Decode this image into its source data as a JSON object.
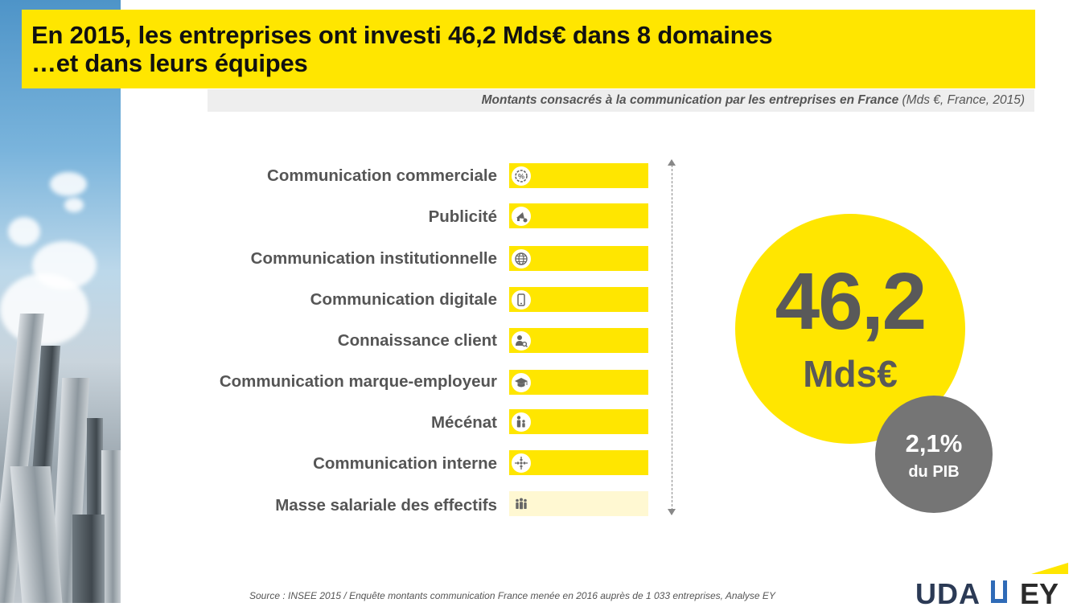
{
  "title": {
    "line1": "En 2015, les entreprises ont investi 46,2 Mds€ dans 8 domaines",
    "line2": "…et dans leurs équipes"
  },
  "subtitle": {
    "bold": "Montants consacrés à la communication par les entreprises en France",
    "normal": " (Mds €, France, 2015)"
  },
  "rows": [
    {
      "label": "Communication commerciale",
      "icon": "percent-gear-icon",
      "bar": "full"
    },
    {
      "label": "Publicité",
      "icon": "megaphone-icon",
      "bar": "full"
    },
    {
      "label": "Communication institutionnelle",
      "icon": "globe-icon",
      "bar": "full"
    },
    {
      "label": "Communication digitale",
      "icon": "smartphone-icon",
      "bar": "full"
    },
    {
      "label": "Connaissance client",
      "icon": "user-search-icon",
      "bar": "full"
    },
    {
      "label": "Communication marque-employeur",
      "icon": "graduation-cap-icon",
      "bar": "full"
    },
    {
      "label": "Mécénat",
      "icon": "parent-child-icon",
      "bar": "full"
    },
    {
      "label": "Communication interne",
      "icon": "arrows-converge-icon",
      "bar": "full"
    },
    {
      "label": "Masse salariale des effectifs",
      "icon": "team-icon",
      "bar": "light"
    }
  ],
  "total": {
    "value": "46,2",
    "unit": "Mds€"
  },
  "pib": {
    "value": "2,1%",
    "label": "du PIB"
  },
  "source": "Source : INSEE 2015 / Enquête montants communication France menée en 2016 auprès de 1 033 entreprises, Analyse EY",
  "logos": {
    "uda": "UDA",
    "ey": "EY"
  },
  "colors": {
    "accent_yellow": "#ffe600",
    "light_yellow": "#fff8d2",
    "text_grey": "#555555",
    "pib_circle": "#757575"
  }
}
